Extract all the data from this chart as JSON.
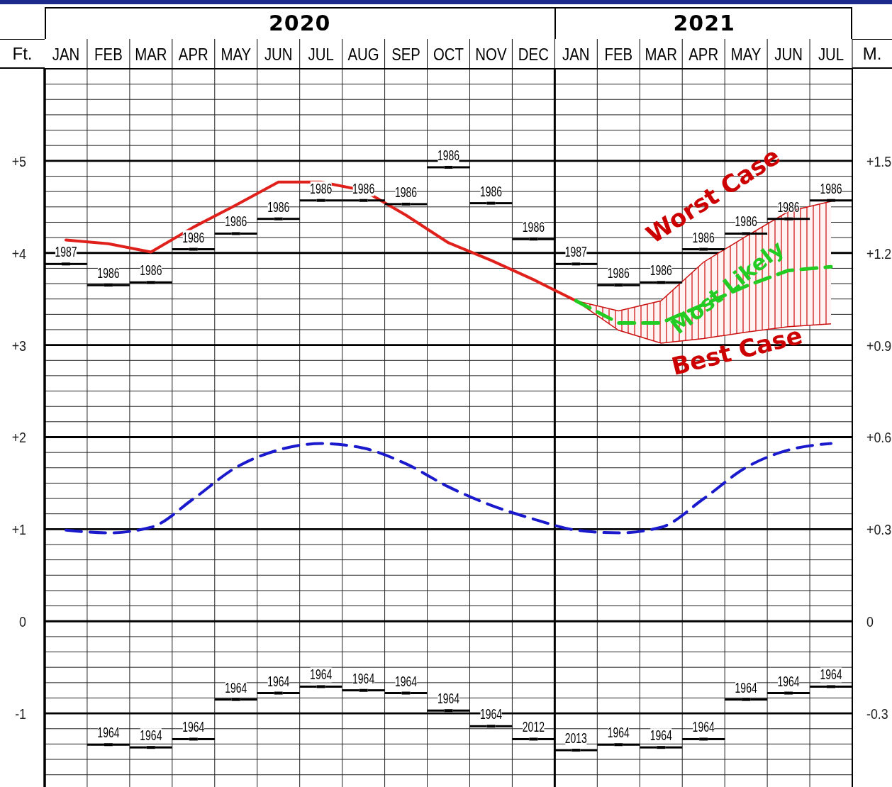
{
  "chart_data": {
    "type": "line",
    "ylabel": "Ft.",
    "y2label": "M.",
    "categories": [
      "JAN",
      "FEB",
      "MAR",
      "APR",
      "MAY",
      "JUN",
      "JUL",
      "AUG",
      "SEP",
      "OCT",
      "NOV",
      "DEC",
      "JAN",
      "FEB",
      "MAR",
      "APR",
      "MAY",
      "JUN",
      "JUL"
    ],
    "annotations": [
      "2020",
      "2021",
      "Worst Case",
      {
        "text": "Best Case",
        "y": 3.14
      },
      {
        "text": "1987",
        "x": "JAN",
        "y": 3.88
      },
      {
        "text": "1986",
        "x": "FEB",
        "y": 3.65
      },
      {
        "text": "1986",
        "x": "MAR",
        "y": 3.68
      },
      {
        "text": "1986",
        "x": "APR",
        "y": 4.04
      },
      {
        "text": "1986",
        "x": "MAY",
        "y": 4.21
      },
      {
        "text": "1986",
        "x": "JUN",
        "y": 4.37
      },
      {
        "text": "1986",
        "x": "JUL",
        "y": 4.57
      },
      {
        "text": "1986",
        "x": "AUG",
        "y": 4.57
      },
      {
        "text": "1986",
        "x": "SEP",
        "y": 4.53
      },
      {
        "text": "1986",
        "x": "OCT",
        "y": 4.93
      },
      {
        "text": "1986",
        "x": "NOV",
        "y": 4.54
      },
      {
        "text": "1986",
        "x": "DEC",
        "y": 4.15
      },
      {
        "text": "1987",
        "y": 3.88
      },
      {
        "text": "1986",
        "y": 3.65
      },
      {
        "text": "1986",
        "y": 3.68
      },
      {
        "text": "1986",
        "y": 4.04
      },
      {
        "text": "1986",
        "y": 4.21
      },
      {
        "text": "1986",
        "y": 4.37
      },
      {
        "text": "1986",
        "y": 4.57
      },
      {
        "text": "1964",
        "x": "FEB",
        "y": -1.34
      },
      {
        "text": "1964",
        "x": "MAR",
        "y": -1.37
      },
      {
        "text": "1964",
        "x": "APR",
        "y": -1.28
      },
      {
        "text": "1964",
        "x": "MAY",
        "y": -0.85
      },
      {
        "text": "1964",
        "x": "JUN",
        "y": -0.78
      },
      {
        "text": "1964",
        "x": "JUL",
        "y": -0.71
      },
      {
        "text": "1964",
        "x": "AUG",
        "y": -0.75
      },
      {
        "text": "1964",
        "x": "SEP",
        "y": -0.78
      },
      {
        "text": "1964",
        "x": "OCT",
        "y": -0.97
      },
      {
        "text": "1964",
        "x": "NOV",
        "y": -1.14
      },
      {
        "text": "2012",
        "x": "DEC",
        "y": -1.28
      },
      {
        "text": "2013",
        "y": -1.4
      },
      {
        "text": "1964",
        "y": -1.34
      },
      {
        "text": "1964",
        "y": -1.37
      },
      {
        "text": "1964",
        "y": -1.28
      },
      {
        "text": "1964",
        "y": -0.85
      },
      {
        "text": "1964",
        "y": -0.78
      },
      {
        "text": "1964",
        "y": -0.71
      }
    ],
    "series": [
      {
        "type": "scatter",
        "color": "#000000",
        "values": [
          3.88,
          3.65,
          3.68,
          4.04,
          4.21,
          4.37,
          4.57,
          4.57,
          4.53,
          4.93,
          4.54,
          4.15,
          3.88,
          3.65,
          3.68,
          4.04,
          4.21,
          4.37,
          4.57
        ]
      },
      {
        "type": "scatter",
        "color": "#000000",
        "values": [
          null,
          -1.34,
          -1.37,
          -1.28,
          -0.85,
          -0.78,
          -0.71,
          -0.75,
          -0.78,
          -0.97,
          -1.14,
          -1.28,
          -1.4,
          -1.34,
          -1.37,
          -1.28,
          -0.85,
          -0.78,
          -0.71
        ]
      },
      {
        "color": "#1a1acc",
        "line_style": "dashed",
        "values": [
          0.99,
          0.96,
          1.02,
          1.33,
          1.67,
          1.86,
          1.93,
          1.88,
          1.71,
          1.46,
          1.26,
          1.11,
          0.99,
          0.96,
          1.02,
          1.33,
          1.67,
          1.86,
          1.93
        ]
      },
      {
        "color": "#e0201b",
        "line_style": "solid",
        "values": [
          4.14,
          4.1,
          4.01,
          4.28,
          4.52,
          4.77,
          4.77,
          4.68,
          4.41,
          4.11,
          3.92,
          3.71,
          3.48,
          null,
          null,
          null,
          null,
          null,
          null
        ]
      },
      {
        "name": "Most Likely",
        "color": "#22cc22",
        "line_style": "dashed",
        "values": [
          null,
          null,
          null,
          null,
          null,
          null,
          null,
          null,
          null,
          null,
          null,
          null,
          3.48,
          3.24,
          3.24,
          3.44,
          3.64,
          3.81,
          3.85
        ],
        "lower": [
          null,
          null,
          null,
          null,
          null,
          null,
          null,
          null,
          null,
          null,
          null,
          null,
          3.48,
          3.16,
          3.02,
          3.07,
          3.14,
          3.2,
          3.23
        ],
        "upper": [
          null,
          null,
          null,
          null,
          null,
          null,
          null,
          null,
          null,
          null,
          null,
          null,
          3.48,
          3.37,
          3.48,
          3.9,
          4.18,
          4.45,
          4.56
        ]
      }
    ],
    "ylim": [
      -1.8,
      6.0
    ],
    "yticks": [
      {
        "value": -1.667,
        "label": null
      },
      {
        "value": -1.5,
        "label": null
      },
      {
        "value": -1.333,
        "label": null
      },
      {
        "value": -1.167,
        "label": null
      },
      -1,
      {
        "value": -0.833,
        "label": null
      },
      {
        "value": -0.667,
        "label": null
      },
      {
        "value": -0.5,
        "label": null
      },
      {
        "value": -0.333,
        "label": null
      },
      {
        "value": -0.167,
        "label": null
      },
      0,
      {
        "value": 0.167,
        "label": null
      },
      {
        "value": 0.333,
        "label": null
      },
      {
        "value": 0.5,
        "label": null
      },
      {
        "value": 0.667,
        "label": null
      },
      {
        "value": 0.833,
        "label": null
      },
      {
        "value": 1,
        "label": "+1"
      },
      {
        "value": 1.167,
        "label": null
      },
      {
        "value": 1.333,
        "label": null
      },
      {
        "value": 1.5,
        "label": null
      },
      {
        "value": 1.667,
        "label": null
      },
      {
        "value": 1.833,
        "label": null
      },
      {
        "value": 2,
        "label": "+2"
      },
      {
        "value": 2.167,
        "label": null
      },
      {
        "value": 2.333,
        "label": null
      },
      {
        "value": 2.5,
        "label": null
      },
      {
        "value": 2.667,
        "label": null
      },
      {
        "value": 2.833,
        "label": null
      },
      {
        "value": 3,
        "label": "+3"
      },
      {
        "value": 3.167,
        "label": null
      },
      {
        "value": 3.333,
        "label": null
      },
      {
        "value": 3.5,
        "label": null
      },
      {
        "value": 3.667,
        "label": null
      },
      {
        "value": 3.833,
        "label": null
      },
      {
        "value": 4,
        "label": "+4"
      },
      {
        "value": 4.167,
        "label": null
      },
      {
        "value": 4.333,
        "label": null
      },
      {
        "value": 4.5,
        "label": null
      },
      {
        "value": 4.667,
        "label": null
      },
      {
        "value": 4.833,
        "label": null
      },
      {
        "value": 5,
        "label": "+5"
      },
      {
        "value": 5.167,
        "label": null
      },
      {
        "value": 5.333,
        "label": null
      },
      {
        "value": 5.5,
        "label": null
      },
      {
        "value": 5.667,
        "label": null
      },
      {
        "value": 5.833,
        "label": null
      }
    ],
    "y2lim": [
      -0.54,
      1.8
    ],
    "y2ticks": [
      -0.3,
      0,
      {
        "value": 0.3,
        "label": "+0.3"
      },
      {
        "value": 0.6,
        "label": "+0.6"
      },
      {
        "value": 0.9,
        "label": "+0.9"
      },
      {
        "value": 1.2,
        "label": "+1.2"
      },
      {
        "value": 1.5,
        "label": "+1.5"
      }
    ],
    "grid": true
  }
}
